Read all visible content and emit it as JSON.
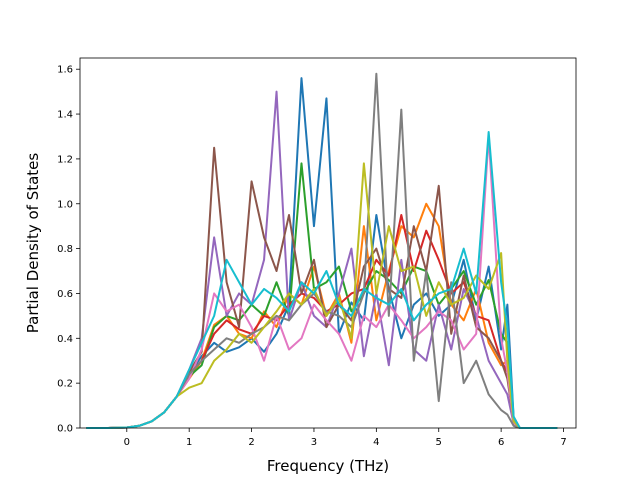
{
  "chart_data": {
    "type": "line",
    "title": "",
    "xlabel": "Frequency (THz)",
    "ylabel": "Partial Density of States",
    "xlim": [
      -0.75,
      7.2
    ],
    "ylim": [
      0.0,
      1.65
    ],
    "xticks": [
      0,
      1,
      2,
      3,
      4,
      5,
      6,
      7
    ],
    "xtick_labels": [
      "0",
      "1",
      "2",
      "3",
      "4",
      "5",
      "6",
      "7"
    ],
    "yticks": [
      0.0,
      0.2,
      0.4,
      0.6,
      0.8,
      1.0,
      1.2,
      1.4,
      1.6
    ],
    "ytick_labels": [
      "0.0",
      "0.2",
      "0.4",
      "0.6",
      "0.8",
      "1.0",
      "1.2",
      "1.4",
      "1.6"
    ],
    "grid": false,
    "legend": "none",
    "x": [
      -0.65,
      -0.3,
      0.0,
      0.2,
      0.4,
      0.6,
      0.8,
      1.0,
      1.2,
      1.4,
      1.6,
      1.8,
      2.0,
      2.2,
      2.4,
      2.6,
      2.8,
      3.0,
      3.2,
      3.4,
      3.6,
      3.8,
      4.0,
      4.2,
      4.4,
      4.6,
      4.8,
      5.0,
      5.2,
      5.4,
      5.6,
      5.8,
      6.0,
      6.1,
      6.2,
      6.3,
      6.5,
      6.9
    ],
    "series": [
      {
        "color": "#1f77b4",
        "values": [
          0,
          0,
          0.002,
          0.01,
          0.03,
          0.07,
          0.14,
          0.24,
          0.32,
          0.38,
          0.34,
          0.36,
          0.4,
          0.34,
          0.42,
          0.55,
          1.56,
          0.9,
          1.47,
          0.42,
          0.56,
          0.48,
          0.95,
          0.62,
          0.4,
          0.55,
          0.6,
          0.5,
          0.55,
          0.75,
          0.48,
          0.72,
          0.35,
          0.55,
          0.05,
          0,
          0,
          0
        ]
      },
      {
        "color": "#ff7f0e",
        "values": [
          0,
          0,
          0.002,
          0.01,
          0.03,
          0.07,
          0.14,
          0.22,
          0.3,
          0.46,
          0.5,
          0.42,
          0.4,
          0.52,
          0.45,
          0.6,
          0.55,
          0.72,
          0.5,
          0.6,
          0.38,
          0.9,
          0.48,
          0.7,
          0.9,
          0.85,
          1.0,
          0.9,
          0.55,
          0.48,
          0.62,
          0.38,
          0.28,
          0.3,
          0.04,
          0,
          0,
          0
        ]
      },
      {
        "color": "#2ca02c",
        "values": [
          0,
          0,
          0.002,
          0.01,
          0.03,
          0.07,
          0.14,
          0.23,
          0.28,
          0.45,
          0.5,
          0.48,
          0.55,
          0.5,
          0.65,
          0.5,
          1.18,
          0.62,
          0.65,
          0.72,
          0.52,
          0.6,
          0.7,
          0.66,
          0.6,
          0.72,
          0.7,
          0.55,
          0.62,
          0.7,
          0.55,
          0.66,
          0.42,
          0.38,
          0.03,
          0,
          0,
          0
        ]
      },
      {
        "color": "#d62728",
        "values": [
          0,
          0,
          0.002,
          0.01,
          0.03,
          0.07,
          0.14,
          0.24,
          0.3,
          0.42,
          0.48,
          0.44,
          0.42,
          0.5,
          0.48,
          0.55,
          0.6,
          0.58,
          0.52,
          0.55,
          0.6,
          0.62,
          0.75,
          0.68,
          0.95,
          0.7,
          0.88,
          0.75,
          0.6,
          0.65,
          0.5,
          0.48,
          0.3,
          0.25,
          0.03,
          0,
          0,
          0
        ]
      },
      {
        "color": "#9467bd",
        "values": [
          0,
          0,
          0.002,
          0.01,
          0.03,
          0.07,
          0.14,
          0.26,
          0.4,
          0.85,
          0.5,
          0.6,
          0.55,
          0.75,
          1.5,
          0.48,
          0.65,
          0.5,
          0.45,
          0.6,
          0.8,
          0.32,
          0.6,
          0.28,
          0.75,
          0.35,
          0.3,
          0.55,
          0.35,
          0.62,
          0.5,
          0.3,
          0.2,
          0.15,
          0.02,
          0,
          0,
          0
        ]
      },
      {
        "color": "#8c564b",
        "values": [
          0,
          0,
          0.002,
          0.01,
          0.03,
          0.07,
          0.14,
          0.25,
          0.34,
          1.25,
          0.65,
          0.45,
          1.1,
          0.85,
          0.7,
          0.95,
          0.6,
          0.75,
          0.45,
          0.55,
          0.48,
          0.72,
          0.8,
          0.62,
          0.58,
          0.9,
          0.7,
          1.08,
          0.42,
          0.68,
          0.45,
          0.4,
          0.3,
          0.22,
          0.03,
          0,
          0,
          0
        ]
      },
      {
        "color": "#e377c2",
        "values": [
          0,
          0,
          0.002,
          0.01,
          0.03,
          0.07,
          0.14,
          0.22,
          0.35,
          0.6,
          0.52,
          0.55,
          0.45,
          0.3,
          0.5,
          0.35,
          0.4,
          0.55,
          0.48,
          0.42,
          0.3,
          0.5,
          0.45,
          0.55,
          0.48,
          0.4,
          0.45,
          0.52,
          0.48,
          0.35,
          0.42,
          1.3,
          0.4,
          0.25,
          0.02,
          0,
          0,
          0
        ]
      },
      {
        "color": "#7f7f7f",
        "values": [
          0,
          0,
          0.002,
          0.01,
          0.03,
          0.07,
          0.14,
          0.24,
          0.3,
          0.35,
          0.4,
          0.38,
          0.42,
          0.45,
          0.5,
          0.48,
          0.55,
          0.6,
          0.52,
          0.5,
          0.45,
          0.6,
          1.58,
          0.5,
          1.42,
          0.3,
          0.7,
          0.12,
          0.65,
          0.2,
          0.3,
          0.15,
          0.08,
          0.06,
          0.01,
          0,
          0,
          0
        ]
      },
      {
        "color": "#bcbd22",
        "values": [
          0,
          0,
          0.002,
          0.01,
          0.03,
          0.07,
          0.14,
          0.18,
          0.2,
          0.3,
          0.35,
          0.42,
          0.38,
          0.45,
          0.52,
          0.6,
          0.55,
          0.62,
          0.5,
          0.58,
          0.4,
          1.18,
          0.6,
          0.9,
          0.7,
          0.72,
          0.5,
          0.65,
          0.55,
          0.58,
          0.68,
          0.62,
          0.78,
          0.3,
          0.03,
          0,
          0,
          0
        ]
      },
      {
        "color": "#17becf",
        "values": [
          0,
          0,
          0.002,
          0.01,
          0.03,
          0.07,
          0.14,
          0.26,
          0.38,
          0.5,
          0.75,
          0.65,
          0.55,
          0.62,
          0.58,
          0.52,
          0.65,
          0.6,
          0.7,
          0.55,
          0.5,
          0.62,
          0.58,
          0.55,
          0.62,
          0.48,
          0.55,
          0.6,
          0.62,
          0.8,
          0.6,
          1.32,
          0.65,
          0.45,
          0.05,
          0,
          0,
          0
        ]
      }
    ]
  }
}
